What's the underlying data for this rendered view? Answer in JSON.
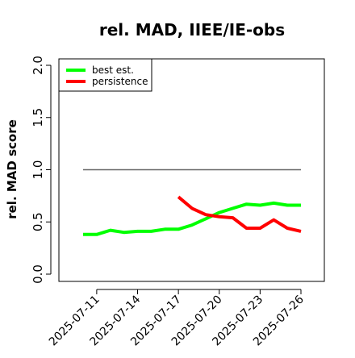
{
  "chart_data": {
    "type": "line",
    "title": "rel. MAD, IIEE/IE-obs",
    "xlabel": "",
    "ylabel": "rel. MAD score",
    "ylim": [
      0.0,
      2.0
    ],
    "yticks": [
      "0.0",
      "0.5",
      "1.0",
      "1.5",
      "2.0"
    ],
    "x": [
      "2025-07-10",
      "2025-07-11",
      "2025-07-12",
      "2025-07-13",
      "2025-07-14",
      "2025-07-15",
      "2025-07-16",
      "2025-07-17",
      "2025-07-18",
      "2025-07-19",
      "2025-07-20",
      "2025-07-21",
      "2025-07-22",
      "2025-07-23",
      "2025-07-24",
      "2025-07-25",
      "2025-07-26"
    ],
    "xticks": [
      "2025-07-11",
      "2025-07-14",
      "2025-07-17",
      "2025-07-20",
      "2025-07-23",
      "2025-07-26"
    ],
    "legend_position": "top-left",
    "series": [
      {
        "name": "best est.",
        "color": "#00ff00",
        "values": [
          0.38,
          0.38,
          0.42,
          0.4,
          0.41,
          0.41,
          0.43,
          0.43,
          0.47,
          0.53,
          0.59,
          0.63,
          0.67,
          0.66,
          0.68,
          0.66,
          0.66
        ]
      },
      {
        "name": "persistence",
        "color": "#ff0000",
        "values": [
          null,
          null,
          null,
          null,
          null,
          null,
          null,
          0.74,
          0.63,
          0.57,
          0.55,
          0.54,
          0.44,
          0.44,
          0.52,
          0.44,
          0.41
        ]
      }
    ],
    "reference_line": {
      "value": 1.0,
      "color": "#666666"
    }
  }
}
